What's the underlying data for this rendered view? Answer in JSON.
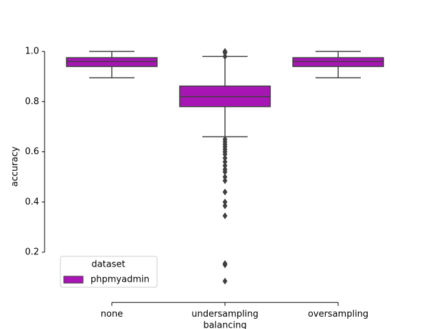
{
  "chart_data": {
    "type": "box",
    "x_label": "balancing",
    "y_label": "accuracy",
    "categories": [
      "none",
      "undersampling",
      "oversampling"
    ],
    "series": [
      {
        "name": "phpmyadmin",
        "color": "#a815b5",
        "whislo": [
          0.895,
          0.66,
          0.895
        ],
        "q1": [
          0.94,
          0.78,
          0.94
        ],
        "median": [
          0.96,
          0.82,
          0.96
        ],
        "q3": [
          0.975,
          0.862,
          0.975
        ],
        "whishi": [
          1.0,
          0.98,
          1.0
        ],
        "fliers": [
          [],
          [
            1.0,
            0.995,
            0.98,
            0.65,
            0.64,
            0.63,
            0.62,
            0.61,
            0.6,
            0.59,
            0.575,
            0.56,
            0.545,
            0.53,
            0.52,
            0.5,
            0.485,
            0.44,
            0.4,
            0.385,
            0.345,
            0.155,
            0.15,
            0.085
          ],
          []
        ]
      }
    ],
    "ylim": [
      0,
      1.05
    ],
    "yticks": [
      0.2,
      0.4,
      0.6,
      0.8,
      {
        "value": 1,
        "label": "1.0"
      }
    ],
    "legend": {
      "title": "dataset",
      "loc": "lower left"
    }
  }
}
